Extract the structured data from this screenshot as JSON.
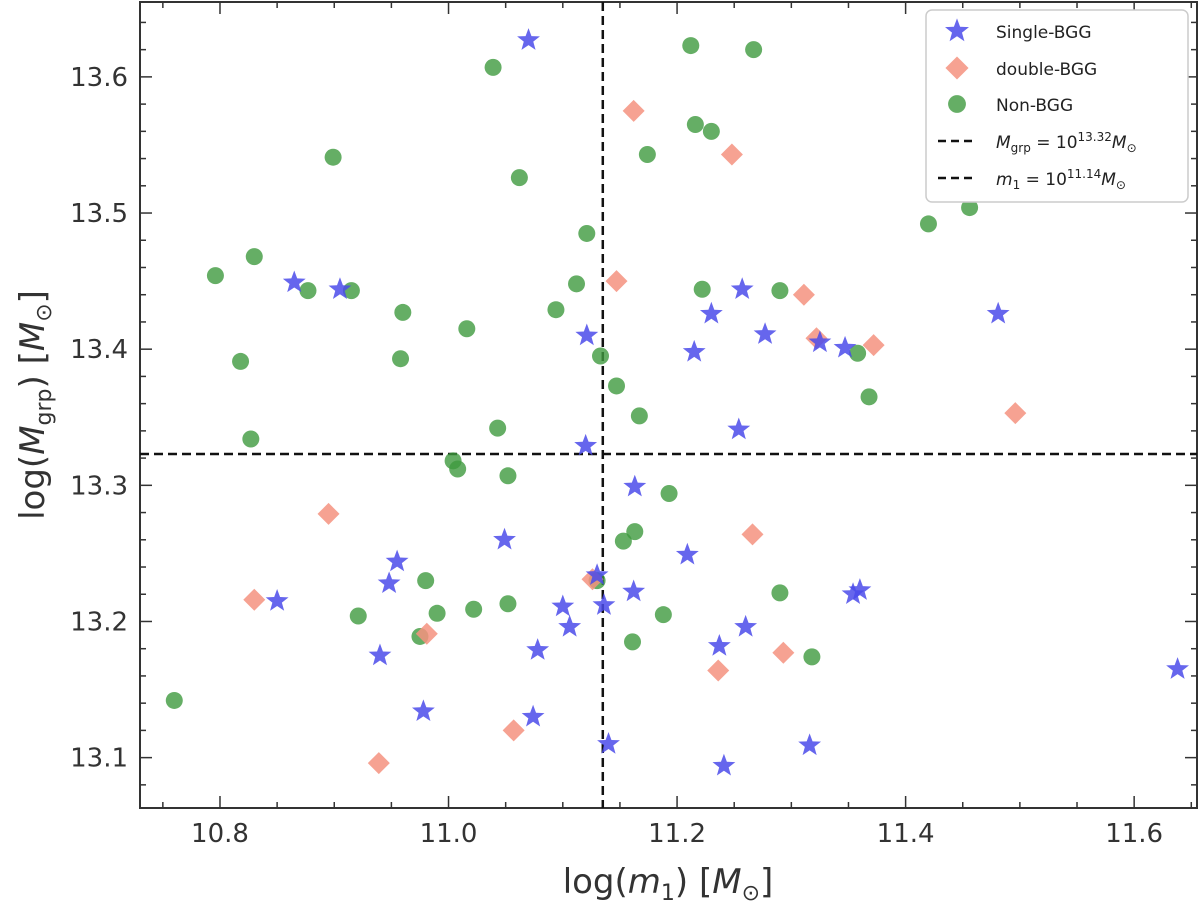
{
  "chart_data": {
    "type": "scatter",
    "xlabel": "log(m1) [M⊙]",
    "ylabel": "log(Mgrp) [M⊙]",
    "xlim": [
      10.73,
      11.655
    ],
    "ylim": [
      13.063,
      13.655
    ],
    "xticks": [
      "10.8",
      "11.0",
      "11.2",
      "11.4",
      "11.6"
    ],
    "yticks": [
      "13.1",
      "13.2",
      "13.3",
      "13.4",
      "13.5",
      "13.6"
    ],
    "grid": false,
    "legend_position": "top-right",
    "reference_lines": [
      {
        "orientation": "horizontal",
        "value": 13.323,
        "style": "dashed",
        "label": "Mgrp = 10^13.32 M⊙"
      },
      {
        "orientation": "vertical",
        "value": 11.135,
        "style": "dashed",
        "label": "m1 = 10^11.14 M⊙"
      }
    ],
    "series": [
      {
        "name": "Single-BGG",
        "marker": "star",
        "color": "#4b4bea",
        "points": [
          [
            11.07,
            13.627
          ],
          [
            10.865,
            13.449
          ],
          [
            10.905,
            13.444
          ],
          [
            11.121,
            13.41
          ],
          [
            11.12,
            13.329
          ],
          [
            11.215,
            13.398
          ],
          [
            11.23,
            13.426
          ],
          [
            11.257,
            13.444
          ],
          [
            11.277,
            13.411
          ],
          [
            11.325,
            13.405
          ],
          [
            11.347,
            13.401
          ],
          [
            11.481,
            13.426
          ],
          [
            11.254,
            13.341
          ],
          [
            11.163,
            13.299
          ],
          [
            11.049,
            13.26
          ],
          [
            10.955,
            13.244
          ],
          [
            10.948,
            13.228
          ],
          [
            10.85,
            13.215
          ],
          [
            11.209,
            13.249
          ],
          [
            11.13,
            13.234
          ],
          [
            11.162,
            13.222
          ],
          [
            11.1,
            13.211
          ],
          [
            11.136,
            13.212
          ],
          [
            11.106,
            13.196
          ],
          [
            11.078,
            13.179
          ],
          [
            10.94,
            13.175
          ],
          [
            11.237,
            13.182
          ],
          [
            11.26,
            13.196
          ],
          [
            11.36,
            13.223
          ],
          [
            11.354,
            13.22
          ],
          [
            10.978,
            13.134
          ],
          [
            11.074,
            13.13
          ],
          [
            11.14,
            13.11
          ],
          [
            11.316,
            13.109
          ],
          [
            11.241,
            13.094
          ],
          [
            11.638,
            13.165
          ]
        ]
      },
      {
        "name": "double-BGG",
        "marker": "diamond",
        "color": "#f5927f",
        "points": [
          [
            11.162,
            13.575
          ],
          [
            11.248,
            13.543
          ],
          [
            11.147,
            13.45
          ],
          [
            11.311,
            13.44
          ],
          [
            11.322,
            13.408
          ],
          [
            11.372,
            13.403
          ],
          [
            11.496,
            13.353
          ],
          [
            10.895,
            13.279
          ],
          [
            11.266,
            13.264
          ],
          [
            10.83,
            13.216
          ],
          [
            11.126,
            13.231
          ],
          [
            10.981,
            13.191
          ],
          [
            11.293,
            13.177
          ],
          [
            11.236,
            13.164
          ],
          [
            11.057,
            13.12
          ],
          [
            10.939,
            13.096
          ]
        ]
      },
      {
        "name": "Non-BGG",
        "marker": "circle",
        "color": "#3e9a3e",
        "points": [
          [
            11.039,
            13.607
          ],
          [
            11.212,
            13.623
          ],
          [
            11.267,
            13.62
          ],
          [
            11.216,
            13.565
          ],
          [
            11.23,
            13.56
          ],
          [
            11.174,
            13.543
          ],
          [
            10.899,
            13.541
          ],
          [
            11.062,
            13.526
          ],
          [
            11.121,
            13.485
          ],
          [
            11.42,
            13.492
          ],
          [
            11.456,
            13.504
          ],
          [
            10.83,
            13.468
          ],
          [
            10.796,
            13.454
          ],
          [
            10.877,
            13.443
          ],
          [
            10.915,
            13.443
          ],
          [
            11.112,
            13.448
          ],
          [
            11.222,
            13.444
          ],
          [
            11.29,
            13.443
          ],
          [
            10.96,
            13.427
          ],
          [
            11.094,
            13.429
          ],
          [
            11.016,
            13.415
          ],
          [
            11.133,
            13.395
          ],
          [
            10.818,
            13.391
          ],
          [
            10.958,
            13.393
          ],
          [
            11.358,
            13.397
          ],
          [
            11.147,
            13.373
          ],
          [
            11.368,
            13.365
          ],
          [
            11.167,
            13.351
          ],
          [
            11.043,
            13.342
          ],
          [
            10.827,
            13.334
          ],
          [
            11.004,
            13.318
          ],
          [
            11.008,
            13.312
          ],
          [
            11.052,
            13.307
          ],
          [
            11.193,
            13.294
          ],
          [
            11.163,
            13.266
          ],
          [
            11.153,
            13.259
          ],
          [
            10.98,
            13.23
          ],
          [
            11.13,
            13.23
          ],
          [
            11.29,
            13.221
          ],
          [
            11.052,
            13.213
          ],
          [
            11.022,
            13.209
          ],
          [
            10.99,
            13.206
          ],
          [
            11.188,
            13.205
          ],
          [
            10.921,
            13.204
          ],
          [
            10.975,
            13.189
          ],
          [
            11.161,
            13.185
          ],
          [
            11.318,
            13.174
          ],
          [
            10.76,
            13.142
          ]
        ]
      }
    ]
  },
  "legend": {
    "items": [
      {
        "label": "Single-BGG",
        "marker": "star"
      },
      {
        "label": "double-BGG",
        "marker": "diamond"
      },
      {
        "label": "Non-BGG",
        "marker": "circle"
      },
      {
        "label": "Mgrp = 10^13.32 M⊙",
        "marker": "dashed-line"
      },
      {
        "label": "m1 = 10^11.14 M⊙",
        "marker": "dashed-line"
      }
    ]
  }
}
